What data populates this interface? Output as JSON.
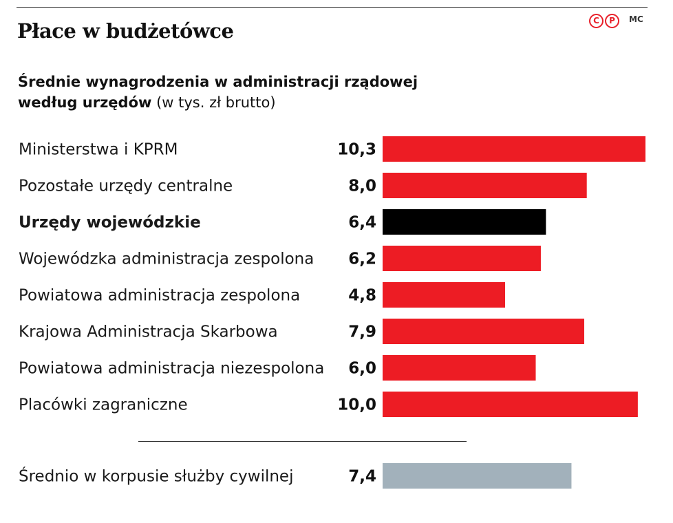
{
  "header": {
    "title": "Płace w budżetówce",
    "logo_text": [
      "C",
      "P"
    ],
    "credit": "MC"
  },
  "subtitle": {
    "line1": "Średnie wynagrodzenia w administracji rządowej",
    "line2_bold": "według urzędów",
    "line2_unit": " (w tys. zł brutto)"
  },
  "colors": {
    "default_bar": "#ed1c24",
    "highlight_bar": "#000000",
    "average_bar": "#a2b1bb"
  },
  "chart_data": {
    "type": "bar",
    "orientation": "horizontal",
    "categories": [
      "Ministerstwa i KPRM",
      "Pozostałe urzędy centralne",
      "Urzędy wojewódzkie",
      "Wojewódzka administracja zespolona",
      "Powiatowa administracja zespolona",
      "Krajowa Administracja Skarbowa",
      "Powiatowa administracja niezespolona",
      "Placówki zagraniczne"
    ],
    "values": [
      10.3,
      8.0,
      6.4,
      6.2,
      4.8,
      7.9,
      6.0,
      10.0
    ],
    "value_labels": [
      "10,3",
      "8,0",
      "6,4",
      "6,2",
      "4,8",
      "7,9",
      "6,0",
      "10,0"
    ],
    "highlight_index": 2,
    "average": {
      "label": "Średnio w korpusie służby cywilnej",
      "value": 7.4,
      "value_label": "7,4"
    },
    "xlim": [
      0,
      10.3
    ],
    "grid": false,
    "legend": "none"
  }
}
